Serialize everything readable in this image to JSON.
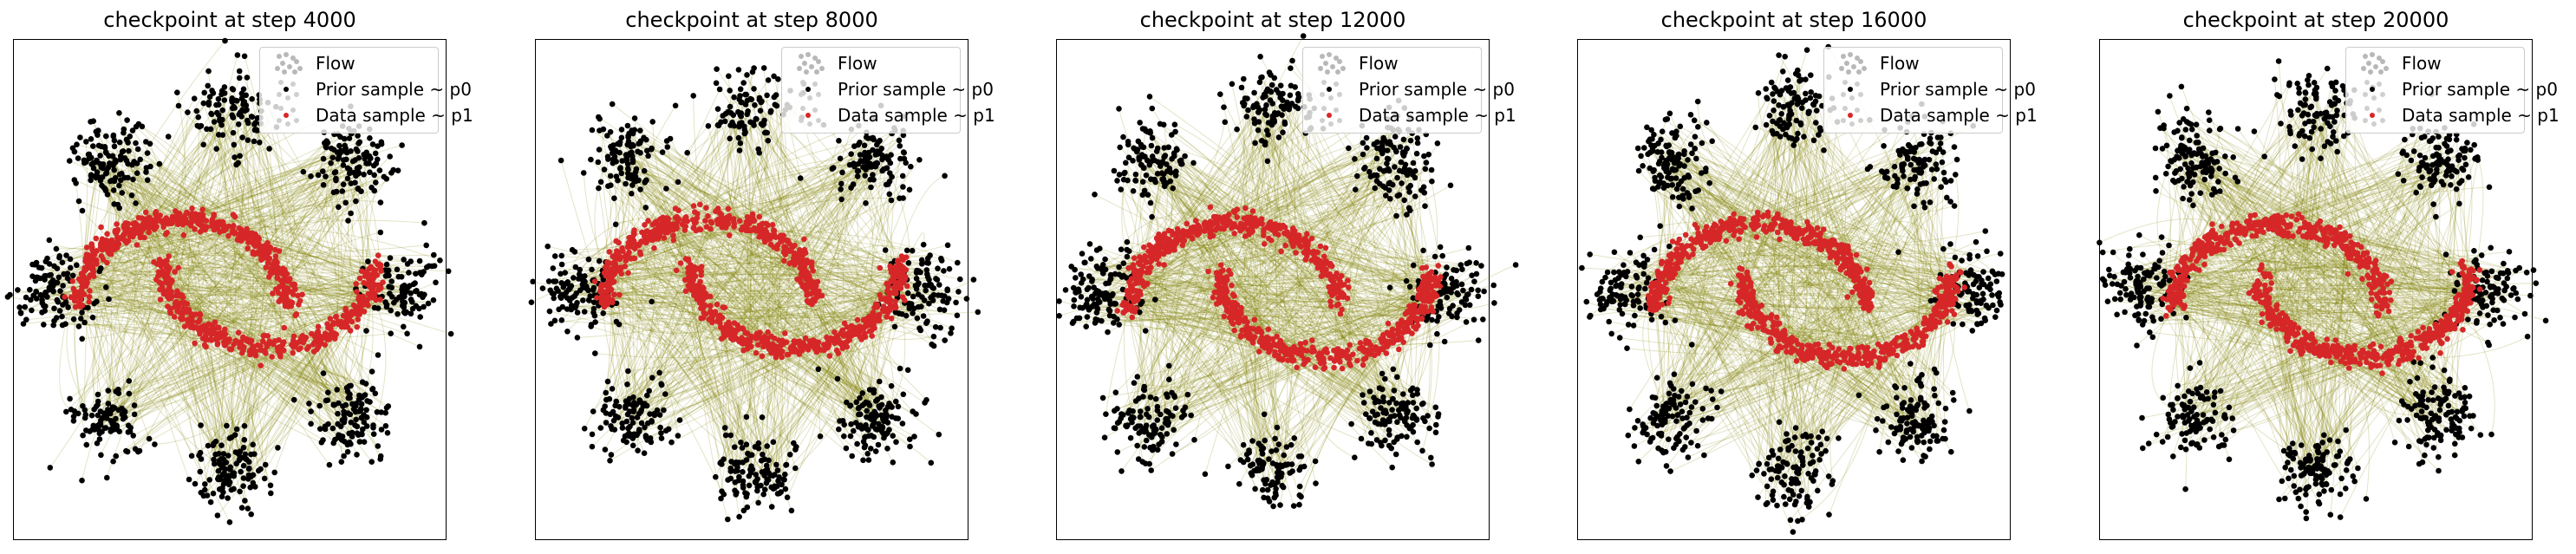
{
  "colors": {
    "flow": "#808000",
    "prior": "#000000",
    "data": "#d62728",
    "prior_cloud": "#000000"
  },
  "legend": {
    "flow": "Flow",
    "prior": "Prior sample ~ p0",
    "data": "Data sample ~ p1",
    "placement": "upper right"
  },
  "chart_data": [
    {
      "type": "scatter",
      "title": "checkpoint at step 4000",
      "step": 4000,
      "xlabel": "",
      "ylabel": "",
      "xlim": [
        -5,
        5
      ],
      "ylim": [
        -5.5,
        5.5
      ],
      "grid": false,
      "ticks": "none",
      "prior": {
        "description_points": "8 gaussian clusters on a circle",
        "centers": [
          [
            4,
            0
          ],
          [
            2.83,
            2.83
          ],
          [
            0,
            4
          ],
          [
            -2.83,
            2.83
          ],
          [
            -4,
            0
          ],
          [
            -2.83,
            -2.83
          ],
          [
            0,
            -4
          ],
          [
            2.83,
            -2.83
          ]
        ],
        "cluster_std": 0.45
      },
      "data": {
        "shape": "two moons",
        "moon_upper_center": [
          -1.1,
          -0.3
        ],
        "moon_lower_center": [
          0.9,
          0.6
        ],
        "radius": 2.2
      }
    },
    {
      "type": "scatter",
      "title": "checkpoint at step 8000",
      "step": 8000,
      "xlabel": "",
      "ylabel": "",
      "xlim": [
        -5,
        5
      ],
      "ylim": [
        -5.5,
        5.5
      ],
      "grid": false,
      "ticks": "none",
      "prior": {
        "centers": [
          [
            4,
            0
          ],
          [
            2.83,
            2.83
          ],
          [
            0,
            4
          ],
          [
            -2.83,
            2.83
          ],
          [
            -4,
            0
          ],
          [
            -2.83,
            -2.83
          ],
          [
            0,
            -4
          ],
          [
            2.83,
            -2.83
          ]
        ],
        "cluster_std": 0.45
      },
      "data": {
        "shape": "two moons",
        "moon_upper_center": [
          -1.0,
          -0.3
        ],
        "moon_lower_center": [
          1.0,
          0.6
        ],
        "radius": 2.2
      }
    },
    {
      "type": "scatter",
      "title": "checkpoint at step 12000",
      "step": 12000,
      "xlabel": "",
      "ylabel": "",
      "xlim": [
        -5,
        5
      ],
      "ylim": [
        -5.5,
        5.5
      ],
      "grid": false,
      "ticks": "none",
      "prior": {
        "centers": [
          [
            4,
            0
          ],
          [
            2.83,
            2.83
          ],
          [
            0,
            4
          ],
          [
            -2.83,
            2.83
          ],
          [
            -4,
            0
          ],
          [
            -2.83,
            -2.83
          ],
          [
            0,
            -4
          ],
          [
            2.83,
            -2.83
          ]
        ],
        "cluster_std": 0.45
      },
      "data": {
        "shape": "two moons",
        "moon_upper_center": [
          -0.9,
          -0.4
        ],
        "moon_lower_center": [
          1.2,
          0.4
        ],
        "radius": 2.2
      }
    },
    {
      "type": "scatter",
      "title": "checkpoint at step 16000",
      "step": 16000,
      "xlabel": "",
      "ylabel": "",
      "xlim": [
        -5,
        5
      ],
      "ylim": [
        -5.5,
        5.5
      ],
      "grid": false,
      "ticks": "none",
      "prior": {
        "centers": [
          [
            4,
            0
          ],
          [
            2.83,
            2.83
          ],
          [
            0,
            4
          ],
          [
            -2.83,
            2.83
          ],
          [
            -4,
            0
          ],
          [
            -2.83,
            -2.83
          ],
          [
            0,
            -4
          ],
          [
            2.83,
            -2.83
          ]
        ],
        "cluster_std": 0.45
      },
      "data": {
        "shape": "two moons",
        "moon_upper_center": [
          -0.8,
          -0.4
        ],
        "moon_lower_center": [
          1.2,
          0.4
        ],
        "radius": 2.2
      }
    },
    {
      "type": "scatter",
      "title": "checkpoint at step 20000",
      "step": 20000,
      "xlabel": "",
      "ylabel": "",
      "xlim": [
        -5,
        5
      ],
      "ylim": [
        -5.5,
        5.5
      ],
      "grid": false,
      "ticks": "none",
      "prior": {
        "centers": [
          [
            4,
            0
          ],
          [
            2.83,
            2.83
          ],
          [
            0,
            4
          ],
          [
            -2.83,
            2.83
          ],
          [
            -4,
            0
          ],
          [
            -2.83,
            -2.83
          ],
          [
            0,
            -4
          ],
          [
            2.83,
            -2.83
          ]
        ],
        "cluster_std": 0.45
      },
      "data": {
        "shape": "two moons",
        "moon_upper_center": [
          -0.9,
          -0.4
        ],
        "moon_lower_center": [
          1.1,
          0.4
        ],
        "radius": 2.2
      }
    }
  ]
}
